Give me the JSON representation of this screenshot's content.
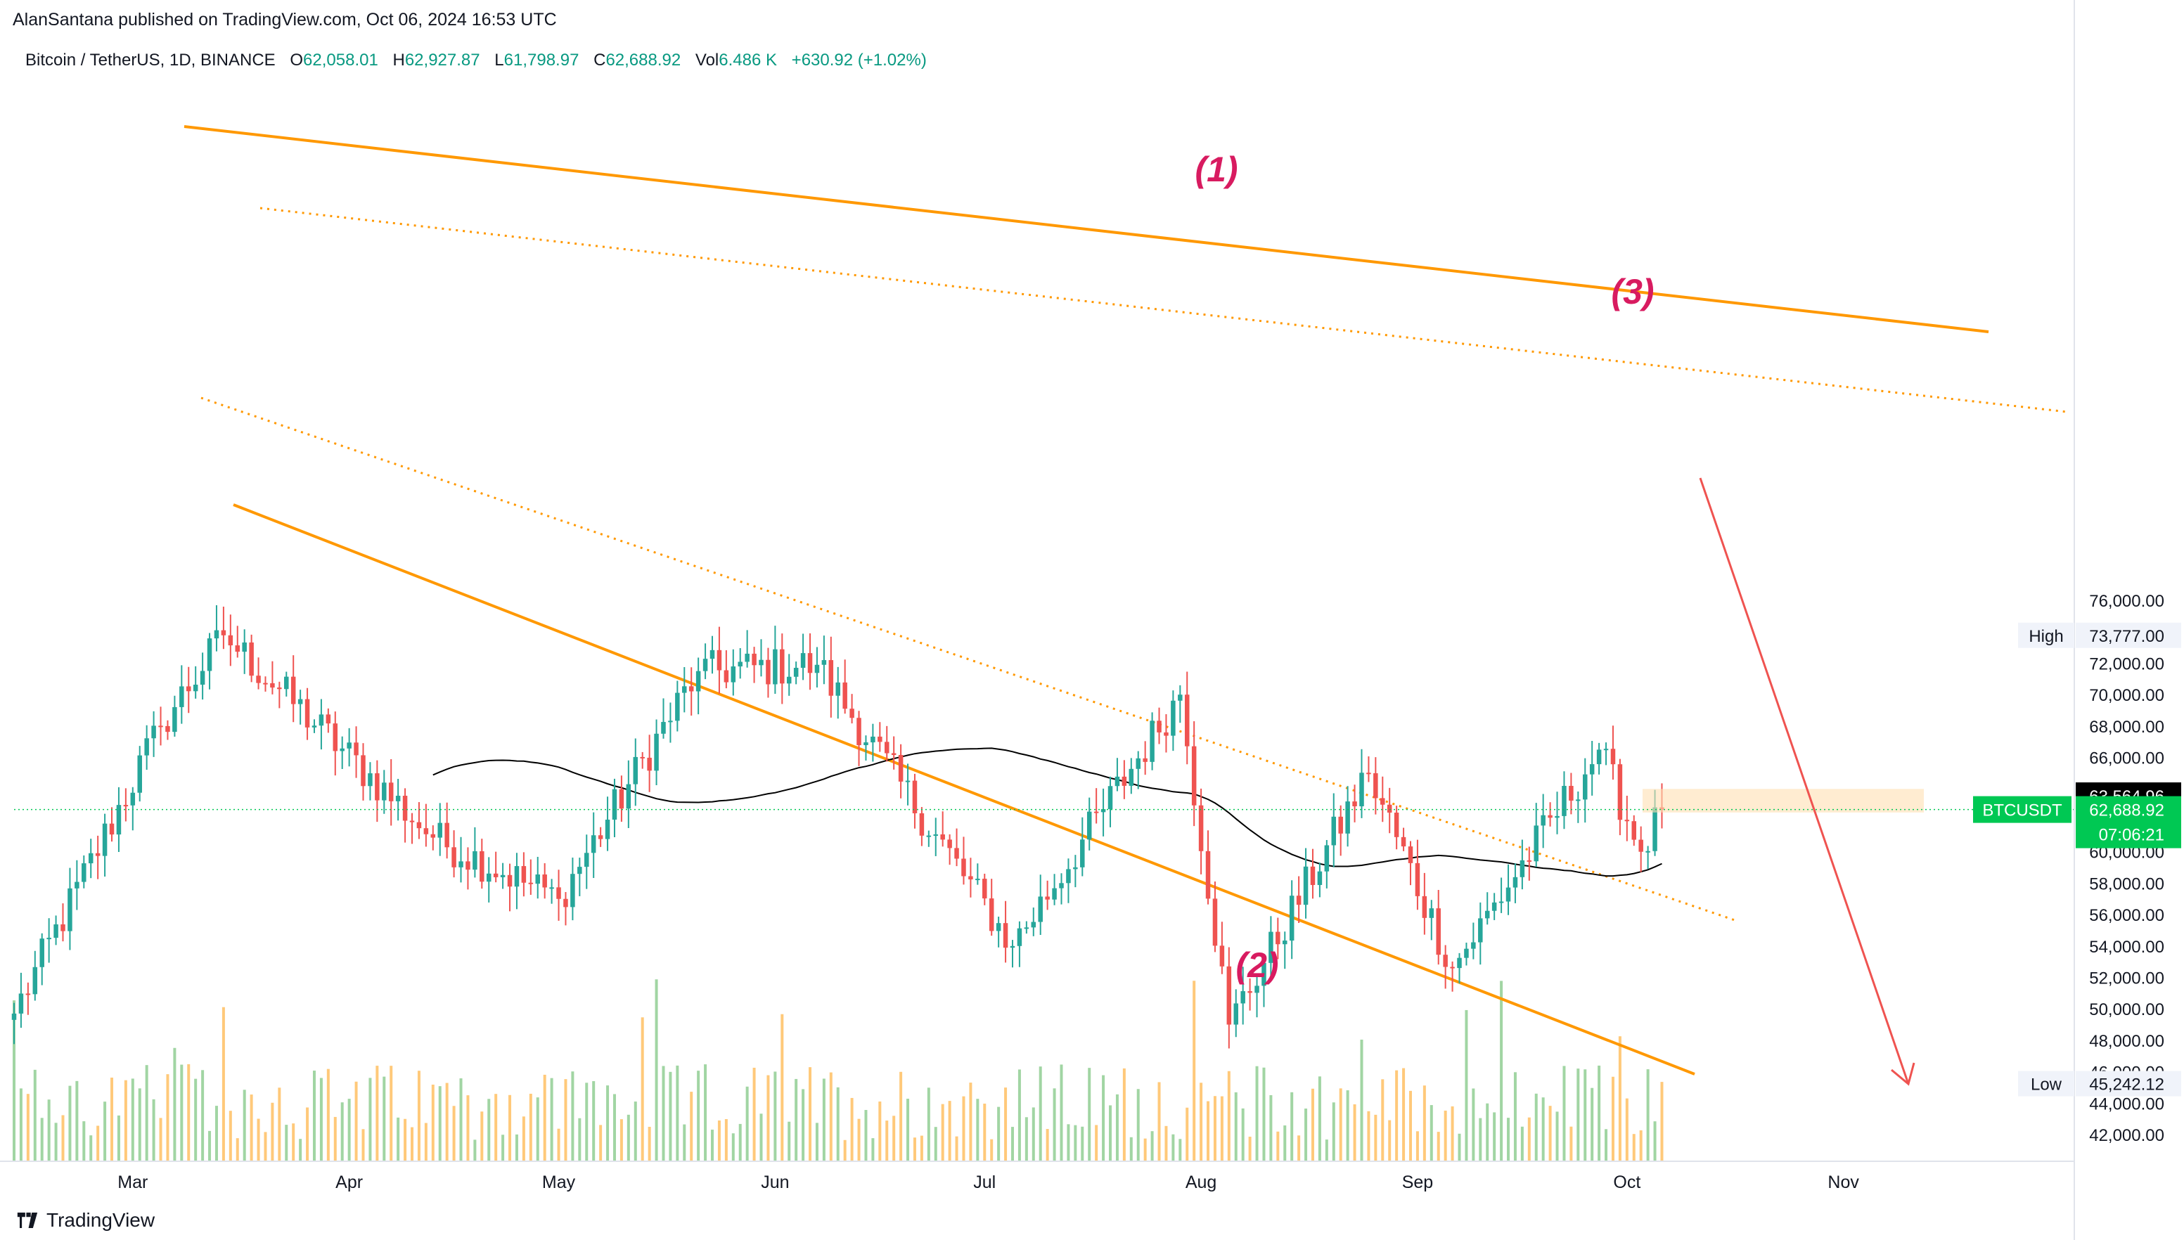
{
  "header": {
    "publisher_line": "AlanSantana published on TradingView.com, Oct 06, 2024 16:53 UTC",
    "symbol_line": "Bitcoin / TetherUS, 1D, BINANCE",
    "open_label": "O",
    "open_value": "62,058.01",
    "high_label": "H",
    "high_value": "62,927.87",
    "low_label": "L",
    "low_value": "61,798.97",
    "close_label": "C",
    "close_value": "62,688.92",
    "vol_label": "Vol",
    "vol_value": "6.486 K",
    "change_value": "+630.92 (+1.02%)"
  },
  "footer": {
    "brand": "TradingView"
  },
  "colors": {
    "up": "#26a69a",
    "down": "#ef5350",
    "channel": "#ff9800",
    "ma": "#000000",
    "annotation": "#d81b60",
    "arrow": "#ef5350",
    "price_tag": "#00c853",
    "vol_up": "#81c784",
    "vol_down": "#ffb74d"
  },
  "chart_data": {
    "type": "candlestick",
    "symbol": "BTCUSDT",
    "interval": "1D",
    "ylim": [
      41000,
      77000
    ],
    "x_ticks": [
      "Mar",
      "Apr",
      "May",
      "Jun",
      "Jul",
      "Aug",
      "Sep",
      "Oct",
      "Nov"
    ],
    "y_ticks": [
      "76,000.00",
      "72,000.00",
      "70,000.00",
      "68,000.00",
      "66,000.00",
      "64,000.00",
      "60,000.00",
      "58,000.00",
      "56,000.00",
      "54,000.00",
      "52,000.00",
      "50,000.00",
      "48,000.00",
      "46,000.00",
      "44,000.00",
      "42,000.00"
    ],
    "badges": {
      "high": {
        "label": "High",
        "value": "73,777.00",
        "price": 73777
      },
      "low": {
        "label": "Low",
        "value": "45,242.12",
        "price": 45242
      },
      "ma_value": {
        "value": "63,564.96",
        "price": 63565
      },
      "last": {
        "symbol": "BTCUSDT",
        "value": "62,688.92",
        "countdown": "07:06:21",
        "price": 62689
      }
    },
    "annotations": [
      "(1)",
      "(2)",
      "(3)"
    ],
    "key_points": [
      {
        "date": "Feb 13",
        "price": 49700
      },
      {
        "date": "Mar 05",
        "price": 68000
      },
      {
        "date": "Mar 14",
        "price": 73777
      },
      {
        "date": "Apr 13",
        "price": 60900
      },
      {
        "date": "May 01",
        "price": 57000
      },
      {
        "date": "May 21",
        "price": 71500
      },
      {
        "date": "Jun 07",
        "price": 71900
      },
      {
        "date": "Jul 05",
        "price": 54000
      },
      {
        "date": "Jul 29",
        "price": 70000
      },
      {
        "date": "Aug 05",
        "price": 49000
      },
      {
        "date": "Aug 25",
        "price": 65000
      },
      {
        "date": "Sep 06",
        "price": 52600
      },
      {
        "date": "Sep 27",
        "price": 66500
      },
      {
        "date": "Oct 03",
        "price": 60000
      },
      {
        "date": "Oct 06",
        "price": 62689
      }
    ]
  }
}
